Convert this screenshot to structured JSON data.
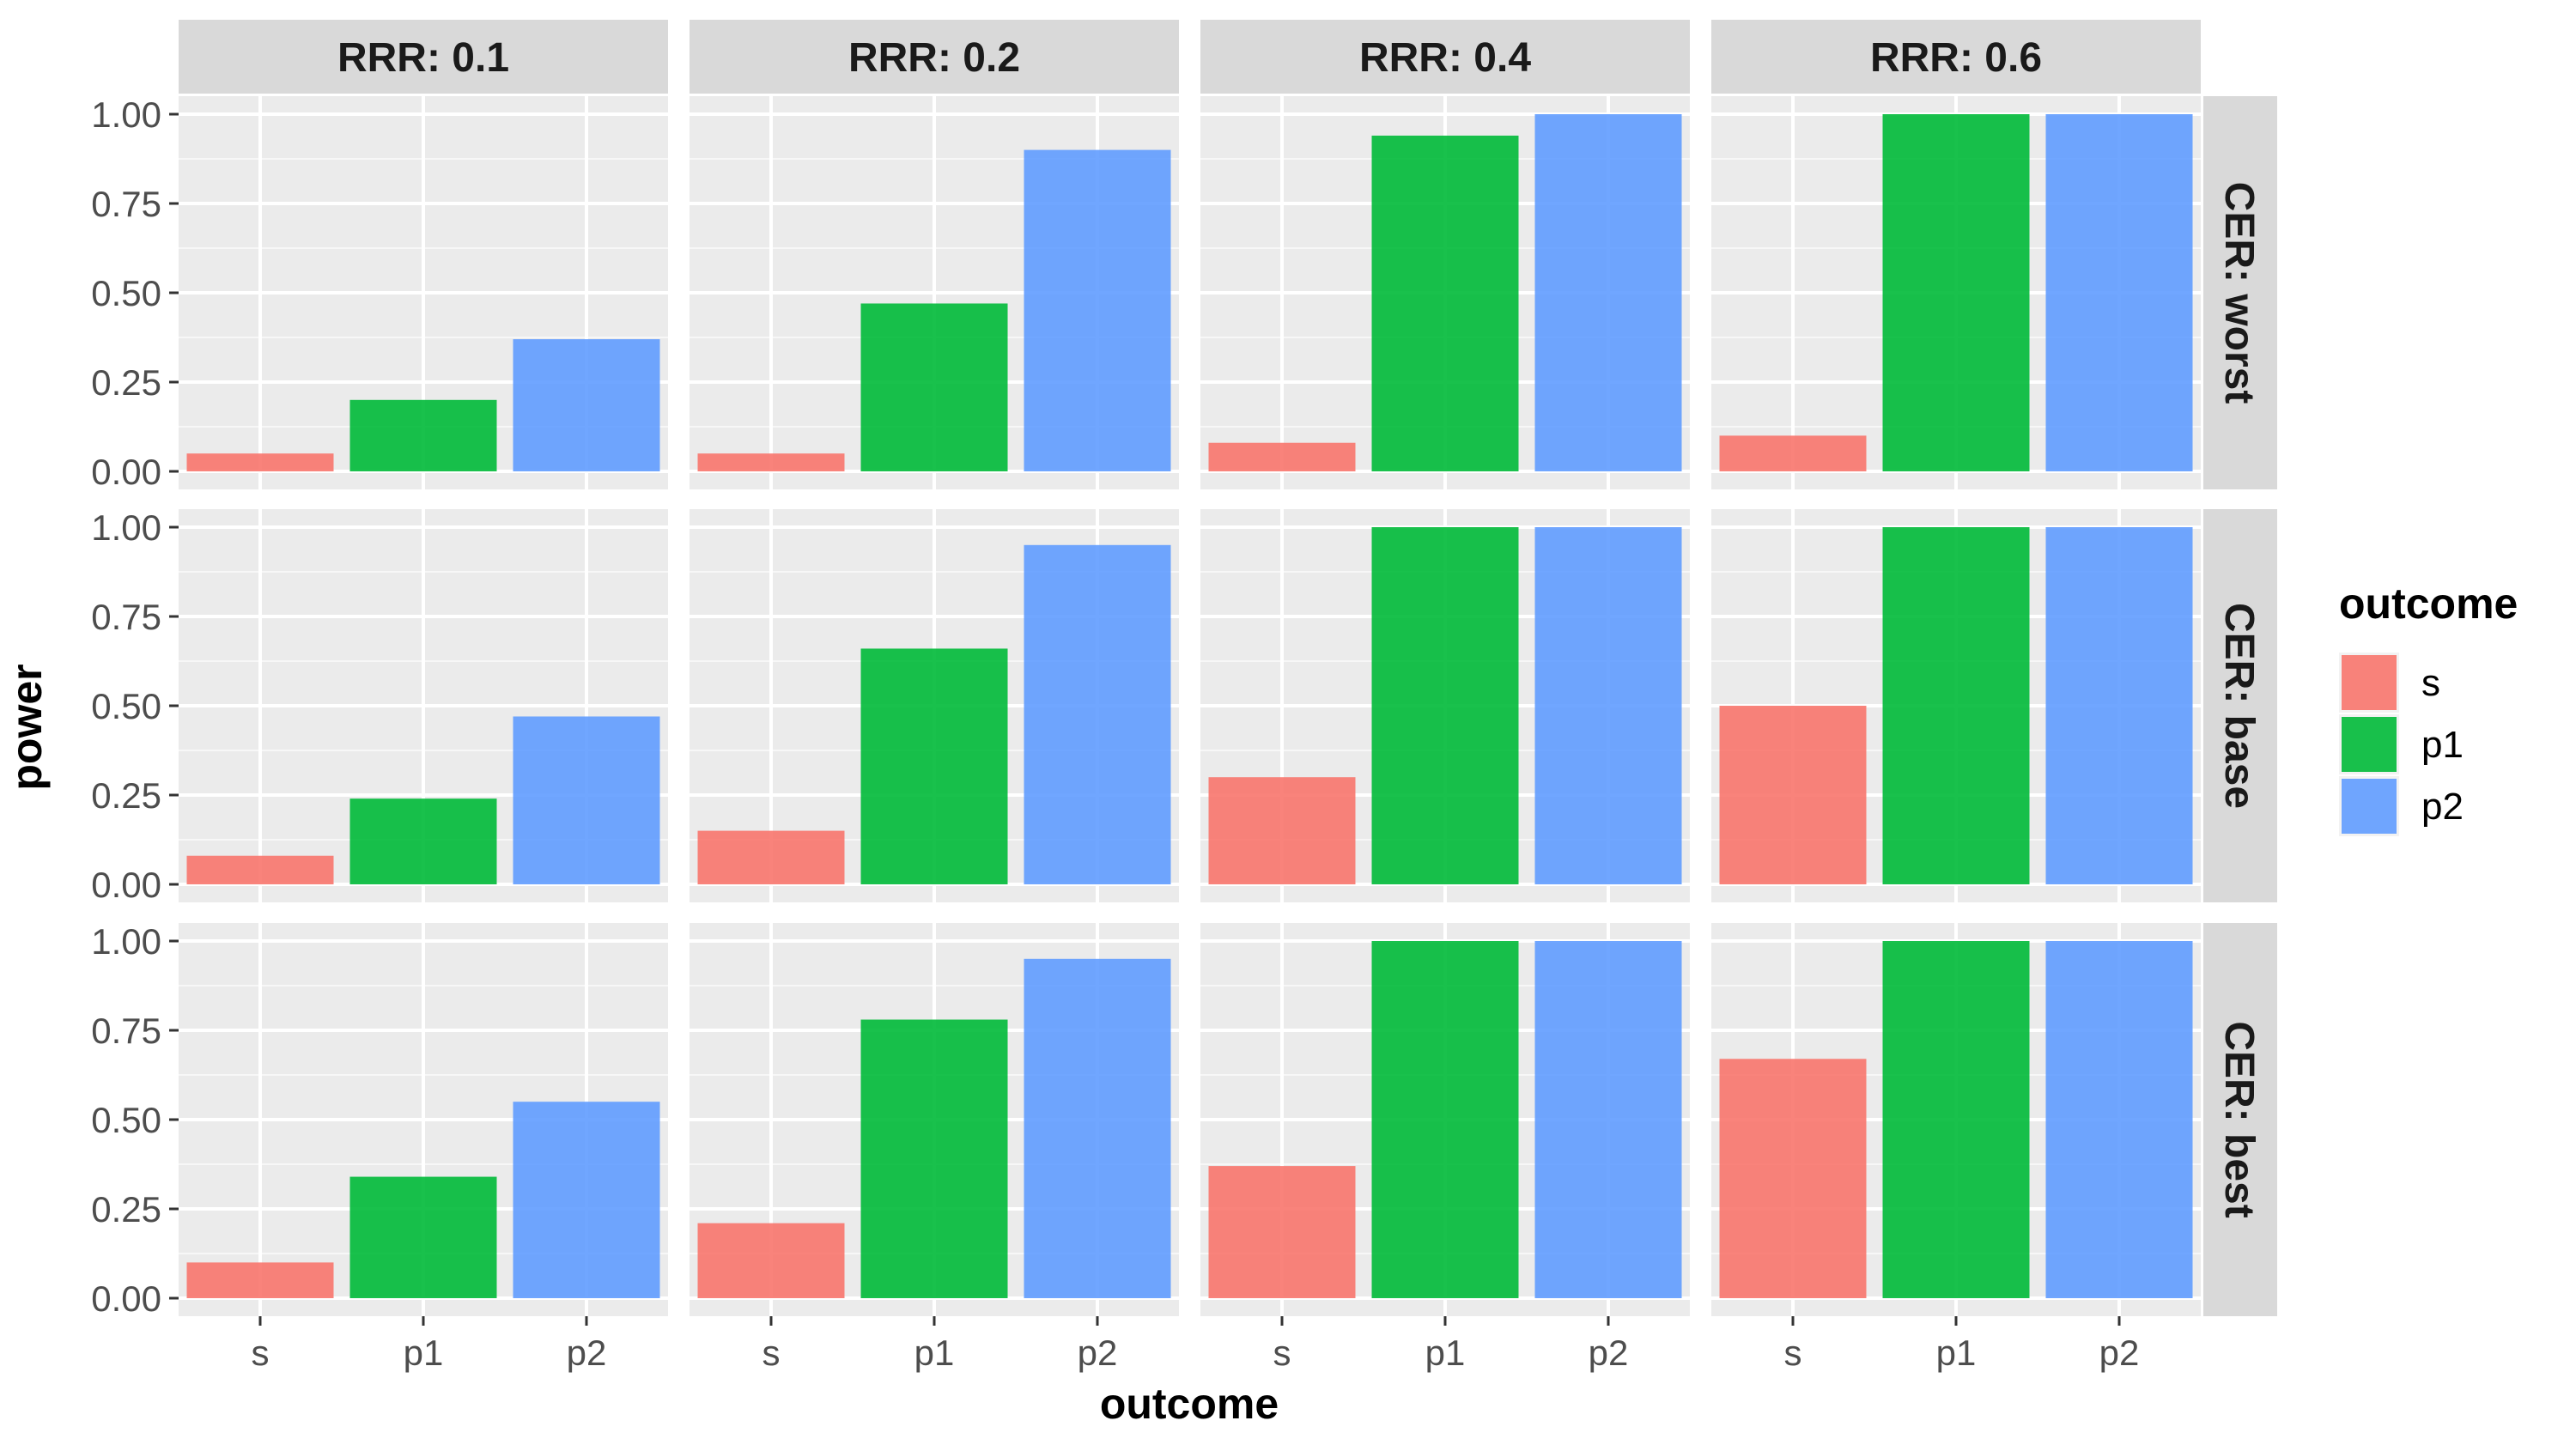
{
  "chart_data": {
    "type": "bar",
    "facet_cols": [
      "RRR: 0.1",
      "RRR: 0.2",
      "RRR: 0.4",
      "RRR: 0.6"
    ],
    "facet_rows": [
      "CER: worst",
      "CER: base",
      "CER: best"
    ],
    "categories": [
      "s",
      "p1",
      "p2"
    ],
    "xlabel": "outcome",
    "ylabel": "power",
    "ylim": [
      0,
      1
    ],
    "y_ticks": [
      "0.00",
      "0.25",
      "0.50",
      "0.75",
      "1.00"
    ],
    "grid": true,
    "legend": {
      "title": "outcome",
      "placement": "right",
      "entries": [
        "s",
        "p1",
        "p2"
      ]
    },
    "colors": {
      "s": "#F8766D",
      "p1": "#00BA38",
      "p2": "#619CFF"
    },
    "panels": [
      {
        "row": "CER: worst",
        "col": "RRR: 0.1",
        "values": [
          0.05,
          0.2,
          0.37
        ]
      },
      {
        "row": "CER: worst",
        "col": "RRR: 0.2",
        "values": [
          0.05,
          0.47,
          0.9
        ]
      },
      {
        "row": "CER: worst",
        "col": "RRR: 0.4",
        "values": [
          0.08,
          0.94,
          1.0
        ]
      },
      {
        "row": "CER: worst",
        "col": "RRR: 0.6",
        "values": [
          0.1,
          1.0,
          1.0
        ]
      },
      {
        "row": "CER: base",
        "col": "RRR: 0.1",
        "values": [
          0.08,
          0.24,
          0.47
        ]
      },
      {
        "row": "CER: base",
        "col": "RRR: 0.2",
        "values": [
          0.15,
          0.66,
          0.95
        ]
      },
      {
        "row": "CER: base",
        "col": "RRR: 0.4",
        "values": [
          0.3,
          1.0,
          1.0
        ]
      },
      {
        "row": "CER: base",
        "col": "RRR: 0.6",
        "values": [
          0.5,
          1.0,
          1.0
        ]
      },
      {
        "row": "CER: best",
        "col": "RRR: 0.1",
        "values": [
          0.1,
          0.34,
          0.55
        ]
      },
      {
        "row": "CER: best",
        "col": "RRR: 0.2",
        "values": [
          0.21,
          0.78,
          0.95
        ]
      },
      {
        "row": "CER: best",
        "col": "RRR: 0.4",
        "values": [
          0.37,
          1.0,
          1.0
        ]
      },
      {
        "row": "CER: best",
        "col": "RRR: 0.6",
        "values": [
          0.67,
          1.0,
          1.0
        ]
      }
    ]
  }
}
